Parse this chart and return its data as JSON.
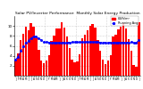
{
  "title": "Solar PV/Inverter Performance  Monthly Solar Energy Production",
  "legend_bar": "kWh/m²",
  "legend_line": "Running Avg",
  "bar_color": "#FF0000",
  "line_color": "#0000FF",
  "background_color": "#FFFFFF",
  "grid_color": "#AAAAAA",
  "values": [
    3.2,
    4.5,
    7.2,
    8.5,
    9.8,
    9.2,
    10.5,
    9.8,
    7.5,
    5.2,
    3.1,
    2.5,
    3.0,
    4.2,
    7.0,
    8.0,
    9.5,
    9.5,
    10.8,
    9.6,
    7.8,
    5.5,
    3.3,
    2.7,
    2.8,
    4.3,
    7.5,
    8.3,
    9.2,
    10.1,
    10.3,
    9.7,
    7.2,
    5.0,
    3.2,
    2.4,
    3.1,
    4.1,
    7.8,
    8.2,
    9.4,
    9.8,
    10.6,
    9.5,
    7.4,
    5.1,
    2.2,
    1.8,
    10.8
  ],
  "ylim": [
    0,
    12
  ],
  "yticks": [
    2,
    4,
    6,
    8,
    10
  ],
  "window": 12,
  "figwidth": 1.6,
  "figheight": 1.0,
  "dpi": 100
}
